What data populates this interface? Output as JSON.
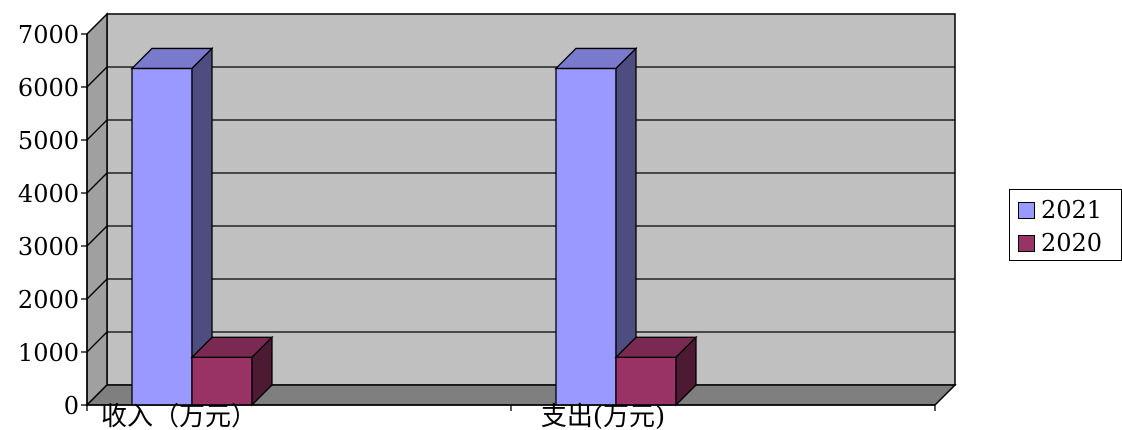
{
  "chart_data": {
    "type": "bar",
    "categories": [
      "收入（万元）",
      "支出(万元)"
    ],
    "series": [
      {
        "name": "2021",
        "values": [
          6350,
          6350
        ],
        "color": "#9999ff"
      },
      {
        "name": "2020",
        "values": [
          900,
          900
        ],
        "color": "#993366"
      }
    ],
    "ylim": [
      0,
      7000
    ],
    "yticks": [
      "0",
      "1000",
      "2000",
      "3000",
      "4000",
      "5000",
      "6000",
      "7000"
    ],
    "grid": true,
    "legend_position": "right",
    "plot_background": "#c0c0c0"
  }
}
